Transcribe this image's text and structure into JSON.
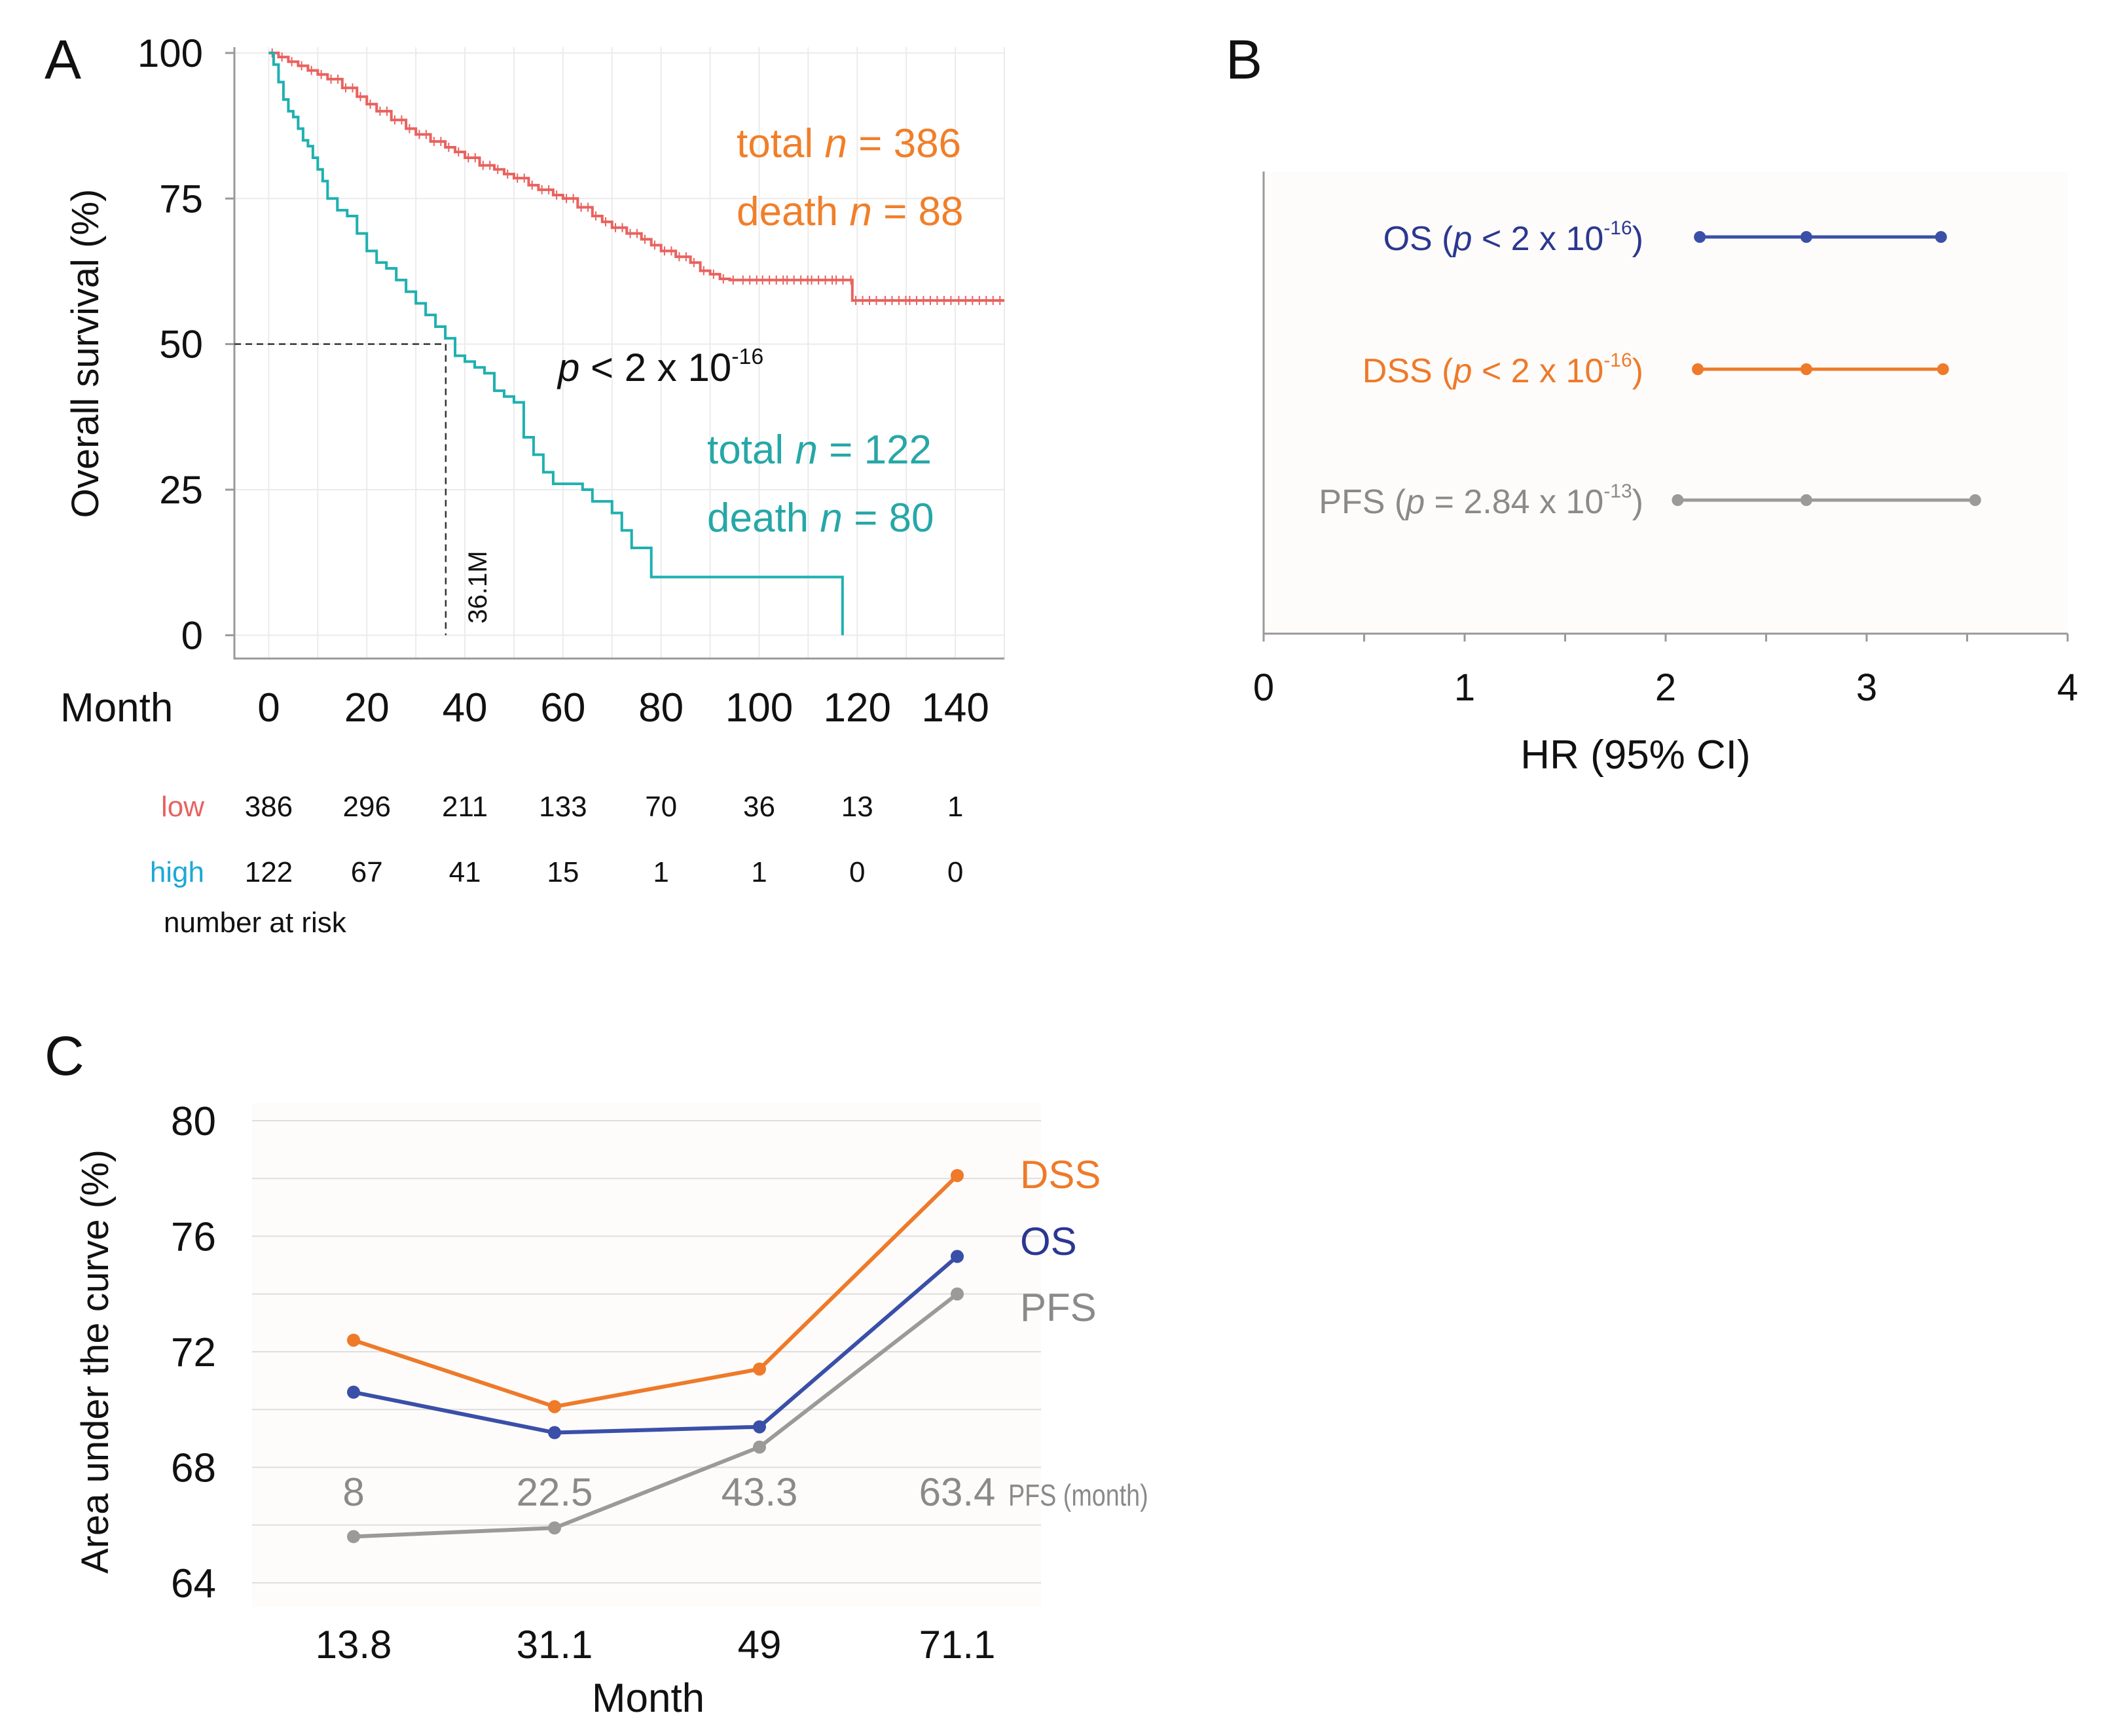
{
  "panels": {
    "A": {
      "letter": "A"
    },
    "B": {
      "letter": "B"
    },
    "C": {
      "letter": "C"
    }
  },
  "colors": {
    "low": "#e8625f",
    "low_label": "#f07f2a",
    "high": "#1fb0b0",
    "high_label": "#27a7a7",
    "high_risk_label": "#1da8d8",
    "os": "#3a4fa8",
    "os_label": "#2b3790",
    "dss": "#ee7a2a",
    "pfs": "#9c9a98",
    "pfs_label": "#8a8a8a",
    "grid": "#ebebeb",
    "axis": "#888888",
    "text": "#1a1a1a"
  },
  "chart_data": [
    {
      "panel": "A",
      "type": "line",
      "subtype": "kaplan-meier",
      "ylabel": "Overall survival (%)",
      "xlabel": "Month",
      "xlim": [
        -7,
        150
      ],
      "ylim": [
        -4,
        101
      ],
      "xticks": [
        "0",
        "20",
        "40",
        "60",
        "80",
        "100",
        "120",
        "140"
      ],
      "yticks": [
        "100",
        "75",
        "50",
        "25",
        "0"
      ],
      "series": [
        {
          "name": "low",
          "x": [
            0,
            2,
            4,
            6,
            8,
            10,
            12,
            15,
            18,
            20,
            22,
            25,
            28,
            30,
            33,
            36,
            38,
            40,
            43,
            46,
            48,
            50,
            53,
            55,
            58,
            60,
            63,
            66,
            68,
            70,
            73,
            76,
            78,
            80,
            83,
            86,
            88,
            90,
            92,
            94,
            96,
            100,
            105,
            110,
            115,
            118,
            119,
            125,
            130,
            140,
            150
          ],
          "y": [
            100,
            99.3,
            98.5,
            97.8,
            97,
            96.3,
            95.5,
            94,
            92.5,
            91.2,
            90,
            88.5,
            87,
            86,
            84.8,
            83.8,
            83,
            82,
            80.7,
            80,
            79.2,
            78.5,
            77.3,
            76.5,
            75.6,
            75,
            73.5,
            72,
            71,
            70,
            69,
            68,
            67,
            66,
            65,
            64,
            62.6,
            62,
            61.2,
            61,
            61,
            61,
            61,
            61,
            61,
            61,
            57.5,
            57.5,
            57.5,
            57.5,
            57.5
          ],
          "total_label": "total",
          "total_n": "386",
          "death_label": "death",
          "death_n": "88"
        },
        {
          "name": "high",
          "x": [
            0,
            1,
            2,
            3,
            4,
            5,
            6,
            7,
            8,
            9,
            10,
            11,
            12,
            14,
            16,
            18,
            20,
            22,
            24,
            26,
            28,
            30,
            32,
            34,
            36,
            38,
            40,
            42,
            44,
            46,
            48,
            50,
            52,
            54,
            56,
            58,
            60,
            64,
            66,
            70,
            72,
            74,
            76,
            78,
            80,
            100,
            117,
            117
          ],
          "y": [
            100,
            98,
            95,
            92,
            90,
            89,
            87,
            85,
            84,
            82,
            80,
            78,
            75,
            73,
            72,
            69,
            66,
            64,
            63,
            61,
            59,
            57,
            55,
            53,
            51,
            48,
            47,
            46,
            45,
            42,
            41,
            40,
            34,
            31,
            28,
            26,
            26,
            25,
            23,
            21,
            18,
            15,
            15,
            10,
            10,
            10,
            10,
            0
          ],
          "total_label": "total",
          "total_n": "122",
          "death_label": "death",
          "death_n": "80"
        }
      ],
      "median_line": {
        "x": 36.1,
        "y": 50,
        "label": "36.1M"
      },
      "p_value": {
        "prefix": "p",
        "text": " < 2 x 10",
        "exponent": "-16"
      },
      "n_symbol": "n",
      "equals": " = ",
      "risk_table": {
        "title": "number at risk",
        "rows": [
          {
            "label": "low",
            "values": [
              "386",
              "296",
              "211",
              "133",
              "70",
              "36",
              "13",
              "1"
            ]
          },
          {
            "label": "high",
            "values": [
              "122",
              "67",
              "41",
              "15",
              "1",
              "1",
              "0",
              "0"
            ]
          }
        ]
      }
    },
    {
      "panel": "B",
      "type": "scatter",
      "subtype": "forest",
      "xlabel": "HR (95% CI)",
      "xlim": [
        0,
        4
      ],
      "xticks": [
        "0",
        "1",
        "2",
        "3",
        "4"
      ],
      "rows": [
        {
          "name": "OS",
          "p_op": " < ",
          "p_value": "2 x 10",
          "p_exp": "-16",
          "hr": 2.7,
          "lower": 2.17,
          "upper": 3.37
        },
        {
          "name": "DSS",
          "p_op": " < ",
          "p_value": "2 x 10",
          "p_exp": "-16",
          "hr": 2.7,
          "lower": 2.16,
          "upper": 3.38
        },
        {
          "name": "PFS",
          "p_op": " = ",
          "p_value": "2.84 x 10",
          "p_exp": "-13",
          "hr": 2.7,
          "lower": 2.06,
          "upper": 3.54
        }
      ]
    },
    {
      "panel": "C",
      "type": "line",
      "ylabel": "Area under the curve (%)",
      "xlabel": "Month",
      "categories": [
        "13.8",
        "31.1",
        "49",
        "71.1"
      ],
      "ylim": [
        64,
        80
      ],
      "yticks": [
        "80",
        "76",
        "72",
        "68",
        "64"
      ],
      "series": [
        {
          "name": "DSS",
          "values": [
            72.4,
            70.1,
            71.4,
            78.1
          ]
        },
        {
          "name": "OS",
          "values": [
            70.6,
            69.2,
            69.4,
            75.3
          ]
        },
        {
          "name": "PFS",
          "values": [
            65.6,
            65.9,
            68.7,
            74.0
          ]
        }
      ],
      "pfs_months": [
        "8",
        "22.5",
        "43.3",
        "63.4"
      ],
      "pfs_months_label": "PFS (month)"
    }
  ]
}
